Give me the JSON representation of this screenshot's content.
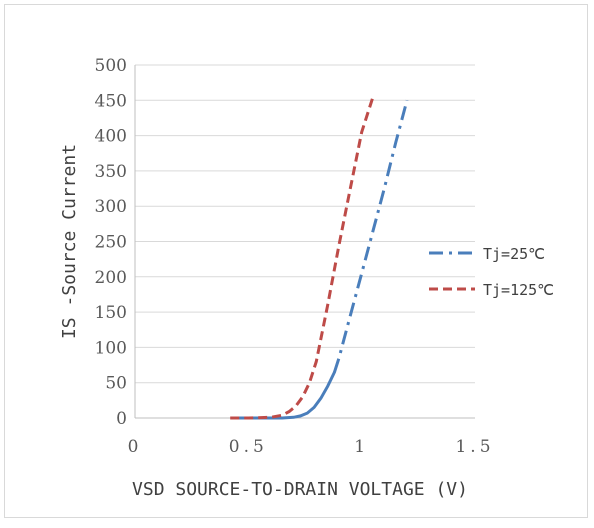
{
  "chart_data": {
    "type": "line",
    "xlabel": "VSD SOURCE-TO-DRAIN VOLTAGE (V)",
    "ylabel": "IS -Source Current",
    "xlim": [
      0,
      1.5
    ],
    "ylim": [
      0,
      500
    ],
    "x_ticks": [
      "0",
      "0.5",
      "1",
      "1.5"
    ],
    "y_ticks": [
      "0",
      "50",
      "100",
      "150",
      "200",
      "250",
      "300",
      "350",
      "400",
      "450",
      "500"
    ],
    "grid": "horizontal",
    "legend_position": "right",
    "series": [
      {
        "name": "Tj=25℃",
        "color": "#4a7ebb",
        "style": "solid-then-dashdot",
        "x": [
          0.45,
          0.55,
          0.65,
          0.7,
          0.73,
          0.76,
          0.79,
          0.82,
          0.85,
          0.88,
          0.9,
          0.95,
          1.0,
          1.05,
          1.1,
          1.15,
          1.2
        ],
        "y": [
          0,
          0,
          0,
          1,
          3,
          7,
          15,
          28,
          45,
          65,
          85,
          145,
          205,
          265,
          325,
          390,
          450
        ]
      },
      {
        "name": "Tj=125℃",
        "color": "#be4b48",
        "style": "dashed",
        "x": [
          0.42,
          0.5,
          0.6,
          0.65,
          0.68,
          0.71,
          0.74,
          0.77,
          0.8,
          0.85,
          0.9,
          0.95,
          1.0,
          1.05
        ],
        "y": [
          0,
          0,
          1,
          4,
          9,
          17,
          30,
          50,
          80,
          160,
          245,
          325,
          405,
          455
        ]
      }
    ]
  }
}
